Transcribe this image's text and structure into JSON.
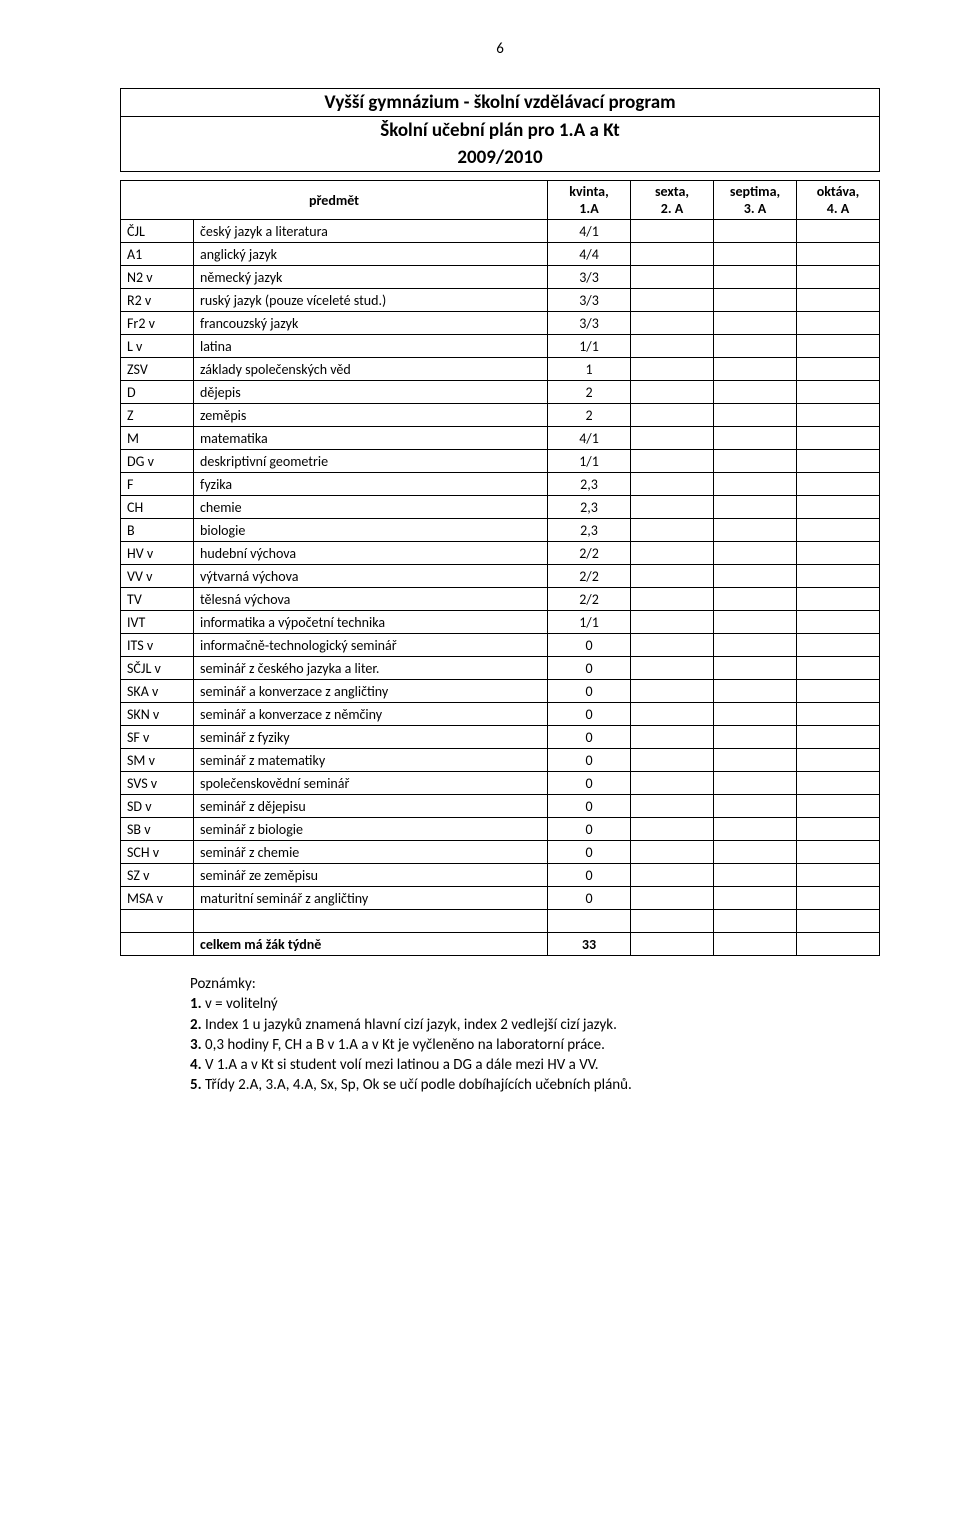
{
  "page_number": "6",
  "title1": "Vyšší gymnázium - školní vzdělávací program",
  "title2": "Školní učební plán  pro 1.A a Kt",
  "title3": "2009/2010",
  "header": {
    "predmet": "předmět",
    "c1a": "kvinta,",
    "c1b": "1.A",
    "c2a": "sexta,",
    "c2b": "2. A",
    "c3a": "septima,",
    "c3b": "3. A",
    "c4a": "oktáva,",
    "c4b": "4. A"
  },
  "rows": [
    {
      "code": "ČJL",
      "name": "český jazyk a literatura",
      "v": "4/1"
    },
    {
      "code": "A1",
      "name": "anglický jazyk",
      "v": "4/4"
    },
    {
      "code": "N2 v",
      "name": "německý jazyk",
      "v": "3/3"
    },
    {
      "code": "R2 v",
      "name": "ruský jazyk (pouze víceleté stud.)",
      "v": "3/3"
    },
    {
      "code": "Fr2 v",
      "name": "francouzský jazyk",
      "v": "3/3"
    },
    {
      "code": "L v",
      "name": "latina",
      "v": "1/1"
    },
    {
      "code": "ZSV",
      "name": "základy společenských věd",
      "v": "1"
    },
    {
      "code": "D",
      "name": "dějepis",
      "v": "2"
    },
    {
      "code": "Z",
      "name": "zeměpis",
      "v": "2"
    },
    {
      "code": "M",
      "name": "matematika",
      "v": "4/1"
    },
    {
      "code": "DG v",
      "name": "deskriptivní geometrie",
      "v": "1/1"
    },
    {
      "code": "F",
      "name": "fyzika",
      "v": "2,3"
    },
    {
      "code": "CH",
      "name": "chemie",
      "v": "2,3"
    },
    {
      "code": "B",
      "name": "biologie",
      "v": "2,3"
    },
    {
      "code": "HV v",
      "name": "hudební výchova",
      "v": "2/2"
    },
    {
      "code": "VV v",
      "name": "výtvarná výchova",
      "v": "2/2"
    },
    {
      "code": "TV",
      "name": "tělesná výchova",
      "v": "2/2"
    },
    {
      "code": "IVT",
      "name": "informatika a výpočetní technika",
      "v": "1/1"
    },
    {
      "code": "ITS v",
      "name": "informačně-technologický seminář",
      "v": "0"
    },
    {
      "code": "SČJL v",
      "name": "seminář z českého jazyka a liter.",
      "v": "0"
    },
    {
      "code": "SKA v",
      "name": "seminář a konverzace z angličtiny",
      "v": "0"
    },
    {
      "code": "SKN v",
      "name": "seminář a konverzace z němčiny",
      "v": "0"
    },
    {
      "code": "SF v",
      "name": "seminář z fyziky",
      "v": "0"
    },
    {
      "code": "SM v",
      "name": "seminář z matematiky",
      "v": "0"
    },
    {
      "code": "SVS v",
      "name": "společenskovědní seminář",
      "v": "0"
    },
    {
      "code": "SD v",
      "name": "seminář z dějepisu",
      "v": "0"
    },
    {
      "code": "SB v",
      "name": "seminář z biologie",
      "v": "0"
    },
    {
      "code": "SCH v",
      "name": "seminář z chemie",
      "v": "0"
    },
    {
      "code": "SZ v",
      "name": "seminář ze zeměpisu",
      "v": "0"
    },
    {
      "code": "MSA v",
      "name": "maturitní seminář z angličtiny",
      "v": "0"
    }
  ],
  "sum_label": "celkem má žák týdně",
  "sum_value": "33",
  "notes_head": "Poznámky:",
  "notes": {
    "n1b": "1.",
    "n1": " v = volitelný",
    "n2b": "2.",
    "n2": " Index 1 u jazyků znamená hlavní cizí jazyk, index 2 vedlejší cizí jazyk.",
    "n3b": "3.",
    "n3": " 0,3 hodiny F, CH  a B v 1.A a v Kt je vyčleněno na laboratorní práce.",
    "n4b": "4.",
    "n4": " V 1.A a v Kt si student volí mezi latinou a DG a dále mezi HV a VV.",
    "n5b": "5.",
    "n5": " Třídy 2.A, 3.A, 4.A, Sx, Sp, Ok se učí podle dobíhajících učebních plánů."
  },
  "colors": {
    "border": "#000000",
    "bg": "#ffffff",
    "text": "#000000"
  }
}
